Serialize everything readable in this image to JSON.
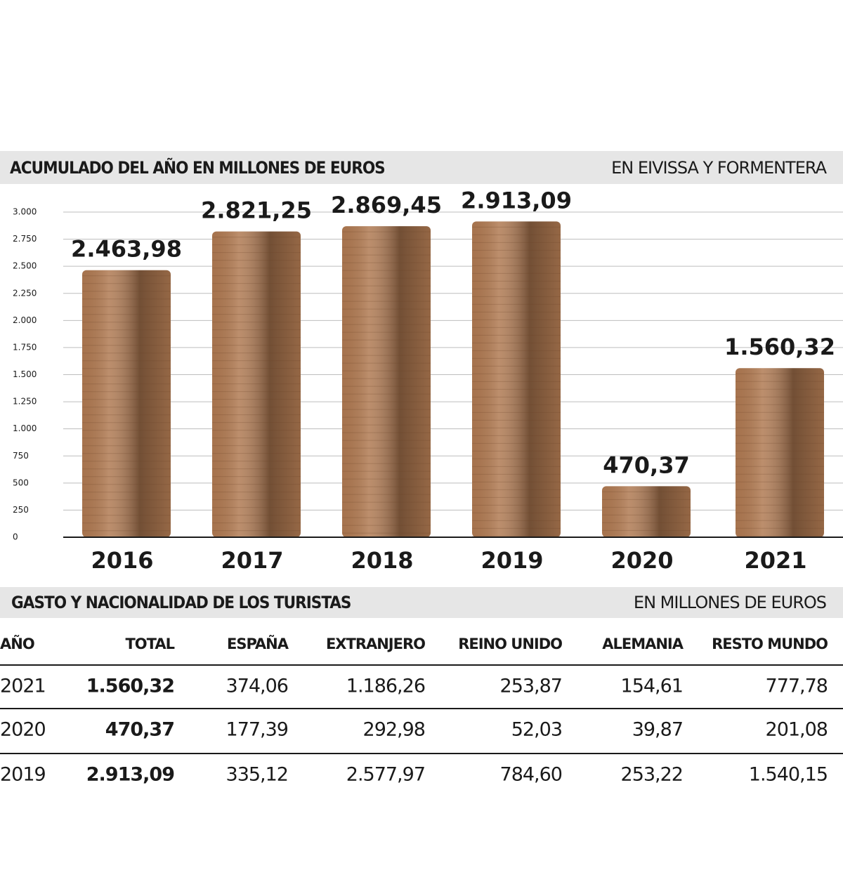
{
  "chart_data": {
    "type": "bar",
    "title": "ACUMULADO DEL AÑO EN MILLONES DE EUROS",
    "subtitle": "EN EIVISSA Y FORMENTERA",
    "categories": [
      "2016",
      "2017",
      "2018",
      "2019",
      "2020",
      "2021"
    ],
    "values": [
      2463.98,
      2821.25,
      2869.45,
      2913.09,
      470.37,
      1560.32
    ],
    "value_labels": [
      "2.463,98",
      "2.821,25",
      "2.869,45",
      "2.913,09",
      "470,37",
      "1.560,32"
    ],
    "color": "#b07a52",
    "ylim": [
      0,
      3000
    ],
    "yticks": [
      0,
      250,
      500,
      750,
      {
        "value": 1000,
        "label": "1.000"
      },
      {
        "value": 1250,
        "label": "1.250"
      },
      {
        "value": 1500,
        "label": "1.500"
      },
      {
        "value": 1750,
        "label": "1.750"
      },
      {
        "value": 2000,
        "label": "2.000"
      },
      {
        "value": 2250,
        "label": "2.250"
      },
      {
        "value": 2500,
        "label": "2.500"
      },
      {
        "value": 2750,
        "label": "2.750"
      },
      {
        "value": 3000,
        "label": "3.000"
      }
    ],
    "grid": true
  },
  "table": {
    "title": "GASTO Y NACIONALIDAD DE LOS TURISTAS",
    "subtitle": "EN MILLONES DE EUROS",
    "columns": [
      "AÑO",
      "TOTAL",
      "ESPAÑA",
      "EXTRANJERO",
      "REINO UNIDO",
      "ALEMANIA",
      "RESTO MUNDO"
    ],
    "rows": [
      [
        "2021",
        "1.560,32",
        "374,06",
        "1.186,26",
        "253,87",
        "154,61",
        "777,78"
      ],
      [
        "2020",
        "470,37",
        "177,39",
        "292,98",
        "52,03",
        "39,87",
        "201,08"
      ],
      [
        "2019",
        "2.913,09",
        "335,12",
        "2.577,97",
        "784,60",
        "253,22",
        "1.540,15"
      ]
    ]
  }
}
